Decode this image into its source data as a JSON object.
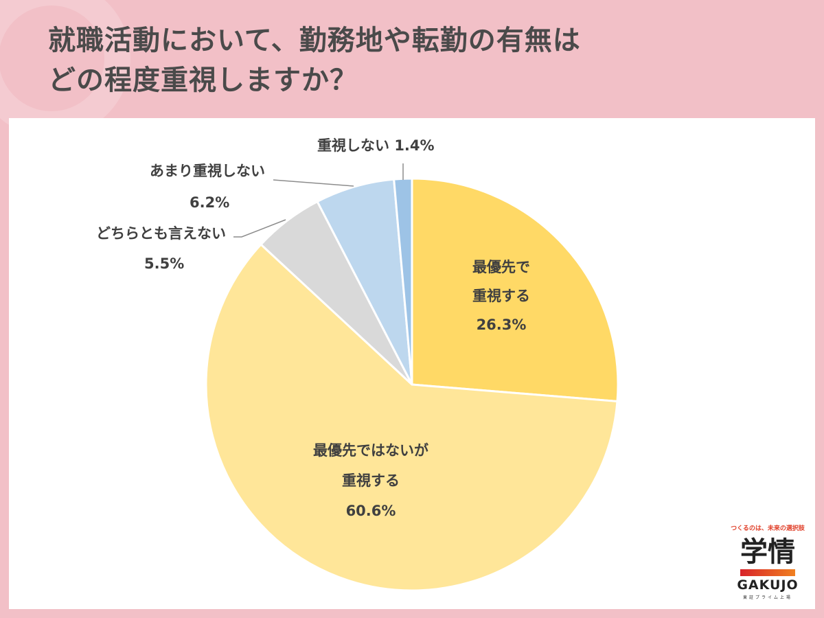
{
  "title": {
    "line1": "就職活動において、勤務地や転勤の有無は",
    "line2": "どの程度重視しますか？"
  },
  "logo": {
    "tagline": "つくるのは、未来の選択肢",
    "kanji": "学情",
    "english": "GAKUJO",
    "sub": "東証プライム上場"
  },
  "chart_data": {
    "type": "pie",
    "title": "就職活動において、勤務地や転勤の有無はどの程度重視しますか？",
    "start_angle": "12 o'clock, clockwise",
    "unit": "%",
    "categories": [
      "最優先で重視する",
      "最優先ではないが重視する",
      "どちらとも言えない",
      "あまり重視しない",
      "重視しない"
    ],
    "values": [
      26.3,
      60.6,
      5.5,
      6.2,
      1.4
    ],
    "colors": [
      "#FFD966",
      "#FFE699",
      "#D9D9D9",
      "#BDD7EE",
      "#9DC3E6"
    ],
    "labels": [
      {
        "line1": "最優先で",
        "line2": "重視する",
        "value": "26.3%"
      },
      {
        "line1": "最優先ではないが",
        "line2": "重視する",
        "value": "60.6%"
      },
      {
        "line1": "どちらとも言えない",
        "value": "5.5%"
      },
      {
        "line1": "あまり重視しない",
        "value": "6.2%"
      },
      {
        "line1": "重視しない",
        "value": "1.4%"
      }
    ]
  }
}
